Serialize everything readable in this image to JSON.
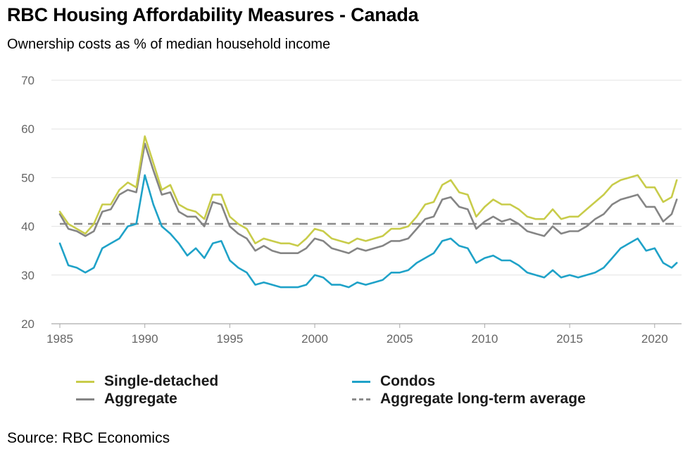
{
  "header": {
    "title": "RBC Housing Affordability Measures - Canada",
    "subtitle": "Ownership costs as % of median household income"
  },
  "footer": {
    "source": "Source: RBC Economics"
  },
  "chart_data": {
    "type": "line",
    "title": "RBC Housing Affordability Measures - Canada",
    "ylabel": "Ownership costs as % of median household income",
    "xlabel": "",
    "xlim": [
      1985,
      2021.5
    ],
    "ylim": [
      20,
      70
    ],
    "grid": true,
    "yticks": [
      "20",
      "30",
      "40",
      "50",
      "60",
      "70"
    ],
    "xticks": [
      "1985",
      "1990",
      "1995",
      "2000",
      "2005",
      "2010",
      "2015",
      "2020"
    ],
    "legend": {
      "placement": "bottom",
      "entries": [
        "Single-detached",
        "Condos",
        "Aggregate",
        "Aggregate long-term average"
      ]
    },
    "series": [
      {
        "name": "Single-detached",
        "color": "#c8cc4a",
        "dash": false,
        "points": [
          [
            1985.0,
            43.0
          ],
          [
            1985.5,
            40.5
          ],
          [
            1986.0,
            39.5
          ],
          [
            1986.5,
            38.5
          ],
          [
            1987.0,
            40.5
          ],
          [
            1987.5,
            44.5
          ],
          [
            1988.0,
            44.5
          ],
          [
            1988.5,
            47.5
          ],
          [
            1989.0,
            49.0
          ],
          [
            1989.5,
            48.0
          ],
          [
            1990.0,
            58.5
          ],
          [
            1990.5,
            53.0
          ],
          [
            1991.0,
            47.5
          ],
          [
            1991.5,
            48.5
          ],
          [
            1992.0,
            44.5
          ],
          [
            1992.5,
            43.5
          ],
          [
            1993.0,
            43.0
          ],
          [
            1993.5,
            41.5
          ],
          [
            1994.0,
            46.5
          ],
          [
            1994.5,
            46.5
          ],
          [
            1995.0,
            42.0
          ],
          [
            1995.5,
            40.5
          ],
          [
            1996.0,
            39.5
          ],
          [
            1996.5,
            36.5
          ],
          [
            1997.0,
            37.5
          ],
          [
            1997.5,
            37.0
          ],
          [
            1998.0,
            36.5
          ],
          [
            1998.5,
            36.5
          ],
          [
            1999.0,
            36.0
          ],
          [
            1999.5,
            37.5
          ],
          [
            2000.0,
            39.5
          ],
          [
            2000.5,
            39.0
          ],
          [
            2001.0,
            37.5
          ],
          [
            2001.5,
            37.0
          ],
          [
            2002.0,
            36.5
          ],
          [
            2002.5,
            37.5
          ],
          [
            2003.0,
            37.0
          ],
          [
            2003.5,
            37.5
          ],
          [
            2004.0,
            38.0
          ],
          [
            2004.5,
            39.5
          ],
          [
            2005.0,
            39.5
          ],
          [
            2005.5,
            40.0
          ],
          [
            2006.0,
            42.0
          ],
          [
            2006.5,
            44.5
          ],
          [
            2007.0,
            45.0
          ],
          [
            2007.5,
            48.5
          ],
          [
            2008.0,
            49.5
          ],
          [
            2008.5,
            47.0
          ],
          [
            2009.0,
            46.5
          ],
          [
            2009.5,
            42.0
          ],
          [
            2010.0,
            44.0
          ],
          [
            2010.5,
            45.5
          ],
          [
            2011.0,
            44.5
          ],
          [
            2011.5,
            44.5
          ],
          [
            2012.0,
            43.5
          ],
          [
            2012.5,
            42.0
          ],
          [
            2013.0,
            41.5
          ],
          [
            2013.5,
            41.5
          ],
          [
            2014.0,
            43.5
          ],
          [
            2014.5,
            41.5
          ],
          [
            2015.0,
            42.0
          ],
          [
            2015.5,
            42.0
          ],
          [
            2016.0,
            43.5
          ],
          [
            2016.5,
            45.0
          ],
          [
            2017.0,
            46.5
          ],
          [
            2017.5,
            48.5
          ],
          [
            2018.0,
            49.5
          ],
          [
            2018.5,
            50.0
          ],
          [
            2019.0,
            50.5
          ],
          [
            2019.5,
            48.0
          ],
          [
            2020.0,
            48.0
          ],
          [
            2020.5,
            45.0
          ],
          [
            2021.0,
            46.0
          ],
          [
            2021.3,
            49.5
          ]
        ]
      },
      {
        "name": "Condos",
        "color": "#1fa2c8",
        "dash": false,
        "points": [
          [
            1985.0,
            36.5
          ],
          [
            1985.5,
            32.0
          ],
          [
            1986.0,
            31.5
          ],
          [
            1986.5,
            30.5
          ],
          [
            1987.0,
            31.5
          ],
          [
            1987.5,
            35.5
          ],
          [
            1988.0,
            36.5
          ],
          [
            1988.5,
            37.5
          ],
          [
            1989.0,
            40.0
          ],
          [
            1989.5,
            40.5
          ],
          [
            1990.0,
            50.5
          ],
          [
            1990.5,
            44.5
          ],
          [
            1991.0,
            40.0
          ],
          [
            1991.5,
            38.5
          ],
          [
            1992.0,
            36.5
          ],
          [
            1992.5,
            34.0
          ],
          [
            1993.0,
            35.5
          ],
          [
            1993.5,
            33.5
          ],
          [
            1994.0,
            36.5
          ],
          [
            1994.5,
            37.0
          ],
          [
            1995.0,
            33.0
          ],
          [
            1995.5,
            31.5
          ],
          [
            1996.0,
            30.5
          ],
          [
            1996.5,
            28.0
          ],
          [
            1997.0,
            28.5
          ],
          [
            1997.5,
            28.0
          ],
          [
            1998.0,
            27.5
          ],
          [
            1998.5,
            27.5
          ],
          [
            1999.0,
            27.5
          ],
          [
            1999.5,
            28.0
          ],
          [
            2000.0,
            30.0
          ],
          [
            2000.5,
            29.5
          ],
          [
            2001.0,
            28.0
          ],
          [
            2001.5,
            28.0
          ],
          [
            2002.0,
            27.5
          ],
          [
            2002.5,
            28.5
          ],
          [
            2003.0,
            28.0
          ],
          [
            2003.5,
            28.5
          ],
          [
            2004.0,
            29.0
          ],
          [
            2004.5,
            30.5
          ],
          [
            2005.0,
            30.5
          ],
          [
            2005.5,
            31.0
          ],
          [
            2006.0,
            32.5
          ],
          [
            2006.5,
            33.5
          ],
          [
            2007.0,
            34.5
          ],
          [
            2007.5,
            37.0
          ],
          [
            2008.0,
            37.5
          ],
          [
            2008.5,
            36.0
          ],
          [
            2009.0,
            35.5
          ],
          [
            2009.5,
            32.5
          ],
          [
            2010.0,
            33.5
          ],
          [
            2010.5,
            34.0
          ],
          [
            2011.0,
            33.0
          ],
          [
            2011.5,
            33.0
          ],
          [
            2012.0,
            32.0
          ],
          [
            2012.5,
            30.5
          ],
          [
            2013.0,
            30.0
          ],
          [
            2013.5,
            29.5
          ],
          [
            2014.0,
            31.0
          ],
          [
            2014.5,
            29.5
          ],
          [
            2015.0,
            30.0
          ],
          [
            2015.5,
            29.5
          ],
          [
            2016.0,
            30.0
          ],
          [
            2016.5,
            30.5
          ],
          [
            2017.0,
            31.5
          ],
          [
            2017.5,
            33.5
          ],
          [
            2018.0,
            35.5
          ],
          [
            2018.5,
            36.5
          ],
          [
            2019.0,
            37.5
          ],
          [
            2019.5,
            35.0
          ],
          [
            2020.0,
            35.5
          ],
          [
            2020.5,
            32.5
          ],
          [
            2021.0,
            31.5
          ],
          [
            2021.3,
            32.5
          ]
        ]
      },
      {
        "name": "Aggregate",
        "color": "#858585",
        "dash": false,
        "points": [
          [
            1985.0,
            42.5
          ],
          [
            1985.5,
            39.5
          ],
          [
            1986.0,
            39.0
          ],
          [
            1986.5,
            38.0
          ],
          [
            1987.0,
            39.0
          ],
          [
            1987.5,
            43.0
          ],
          [
            1988.0,
            43.5
          ],
          [
            1988.5,
            46.5
          ],
          [
            1989.0,
            47.5
          ],
          [
            1989.5,
            47.0
          ],
          [
            1990.0,
            57.0
          ],
          [
            1990.5,
            51.5
          ],
          [
            1991.0,
            46.5
          ],
          [
            1991.5,
            47.0
          ],
          [
            1992.0,
            43.0
          ],
          [
            1992.5,
            42.0
          ],
          [
            1993.0,
            42.0
          ],
          [
            1993.5,
            40.0
          ],
          [
            1994.0,
            45.0
          ],
          [
            1994.5,
            44.5
          ],
          [
            1995.0,
            40.0
          ],
          [
            1995.5,
            38.5
          ],
          [
            1996.0,
            37.5
          ],
          [
            1996.5,
            35.0
          ],
          [
            1997.0,
            36.0
          ],
          [
            1997.5,
            35.0
          ],
          [
            1998.0,
            34.5
          ],
          [
            1998.5,
            34.5
          ],
          [
            1999.0,
            34.5
          ],
          [
            1999.5,
            35.5
          ],
          [
            2000.0,
            37.5
          ],
          [
            2000.5,
            37.0
          ],
          [
            2001.0,
            35.5
          ],
          [
            2001.5,
            35.0
          ],
          [
            2002.0,
            34.5
          ],
          [
            2002.5,
            35.5
          ],
          [
            2003.0,
            35.0
          ],
          [
            2003.5,
            35.5
          ],
          [
            2004.0,
            36.0
          ],
          [
            2004.5,
            37.0
          ],
          [
            2005.0,
            37.0
          ],
          [
            2005.5,
            37.5
          ],
          [
            2006.0,
            39.5
          ],
          [
            2006.5,
            41.5
          ],
          [
            2007.0,
            42.0
          ],
          [
            2007.5,
            45.5
          ],
          [
            2008.0,
            46.0
          ],
          [
            2008.5,
            44.0
          ],
          [
            2009.0,
            43.5
          ],
          [
            2009.5,
            39.5
          ],
          [
            2010.0,
            41.0
          ],
          [
            2010.5,
            42.0
          ],
          [
            2011.0,
            41.0
          ],
          [
            2011.5,
            41.5
          ],
          [
            2012.0,
            40.5
          ],
          [
            2012.5,
            39.0
          ],
          [
            2013.0,
            38.5
          ],
          [
            2013.5,
            38.0
          ],
          [
            2014.0,
            40.0
          ],
          [
            2014.5,
            38.5
          ],
          [
            2015.0,
            39.0
          ],
          [
            2015.5,
            39.0
          ],
          [
            2016.0,
            40.0
          ],
          [
            2016.5,
            41.5
          ],
          [
            2017.0,
            42.5
          ],
          [
            2017.5,
            44.5
          ],
          [
            2018.0,
            45.5
          ],
          [
            2018.5,
            46.0
          ],
          [
            2019.0,
            46.5
          ],
          [
            2019.5,
            44.0
          ],
          [
            2020.0,
            44.0
          ],
          [
            2020.5,
            41.0
          ],
          [
            2021.0,
            42.5
          ],
          [
            2021.3,
            45.5
          ]
        ]
      },
      {
        "name": "Aggregate long-term average",
        "color": "#8c8c8c",
        "dash": true,
        "points": [
          [
            1985.0,
            40.5
          ],
          [
            2021.3,
            40.5
          ]
        ]
      }
    ]
  }
}
